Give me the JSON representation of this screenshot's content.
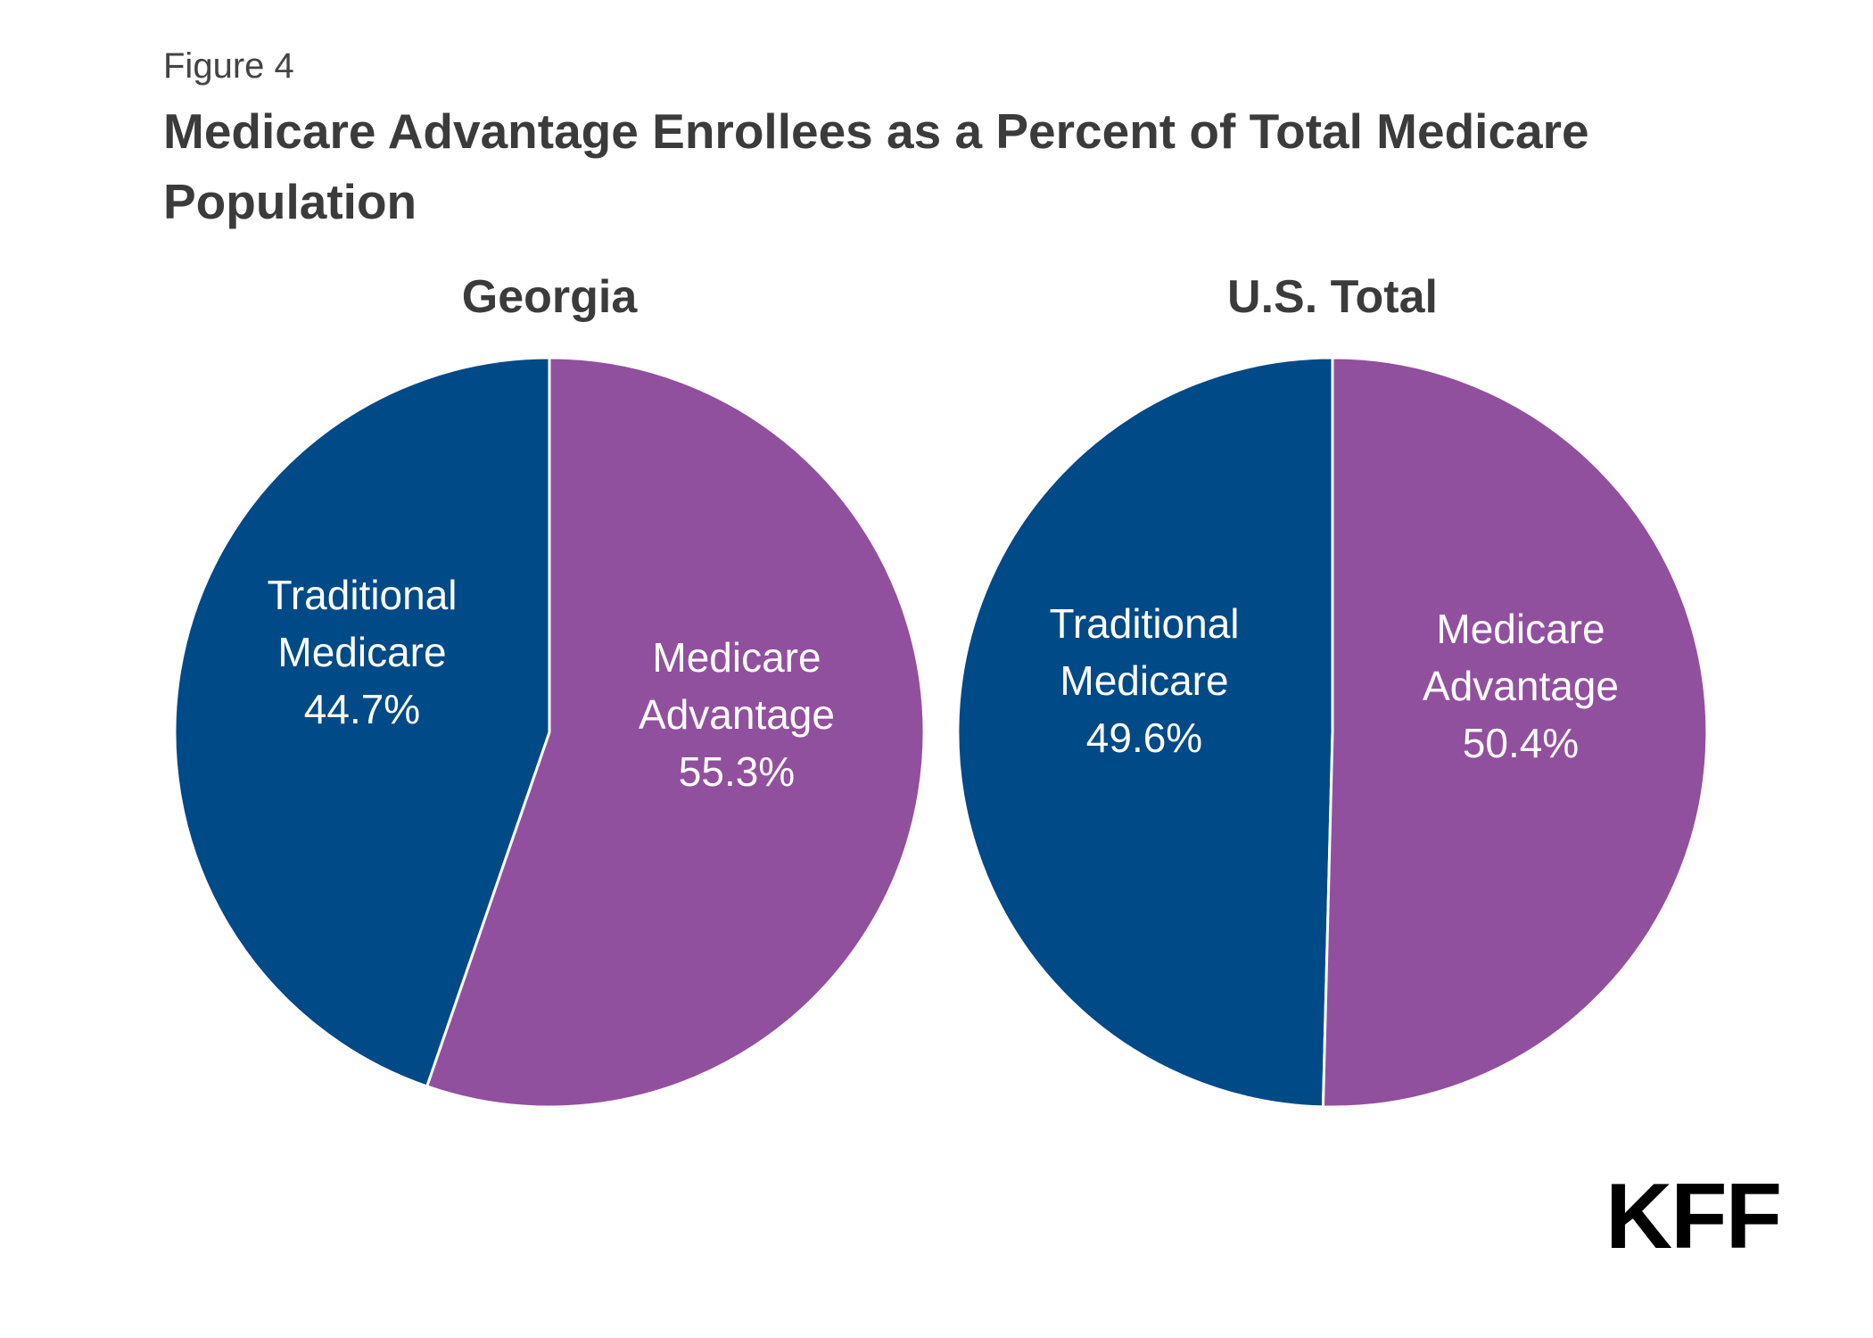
{
  "figure_label": "Figure 4",
  "title": "Medicare Advantage Enrollees as a Percent of Total Medicare Population",
  "logo_text": "KFF",
  "colors": {
    "traditional": "#004a87",
    "advantage": "#91509e",
    "text": "#3b3b3b"
  },
  "chart_data": [
    {
      "type": "pie",
      "title": "Georgia",
      "slices": [
        {
          "label_lines": [
            "Traditional",
            "Medicare"
          ],
          "value": 44.7,
          "value_label": "44.7%",
          "color": "#004a87"
        },
        {
          "label_lines": [
            "Medicare",
            "Advantage"
          ],
          "value": 55.3,
          "value_label": "55.3%",
          "color": "#91509e"
        }
      ]
    },
    {
      "type": "pie",
      "title": "U.S. Total",
      "slices": [
        {
          "label_lines": [
            "Traditional",
            "Medicare"
          ],
          "value": 49.6,
          "value_label": "49.6%",
          "color": "#004a87"
        },
        {
          "label_lines": [
            "Medicare",
            "Advantage"
          ],
          "value": 50.4,
          "value_label": "50.4%",
          "color": "#91509e"
        }
      ]
    }
  ]
}
